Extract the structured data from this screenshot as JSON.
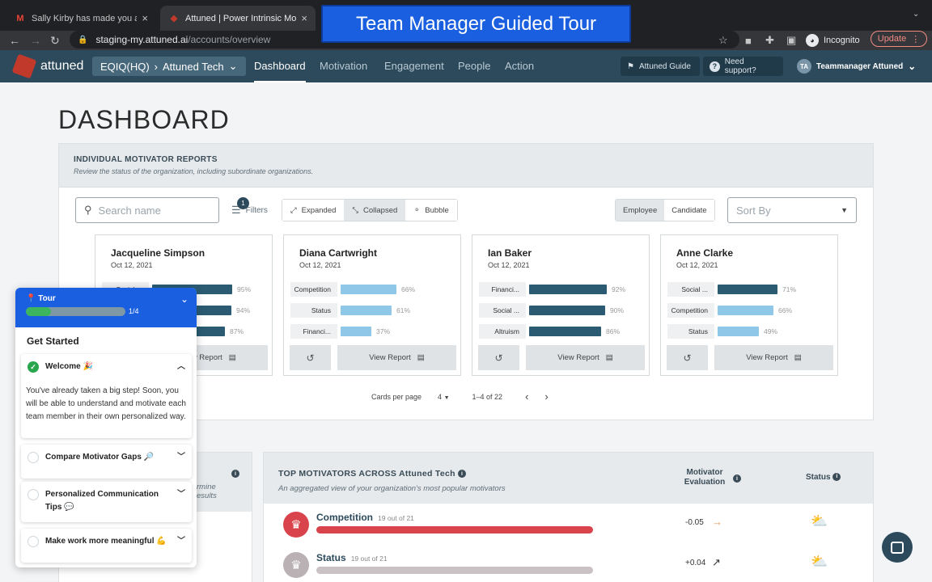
{
  "browser": {
    "tabs": [
      {
        "title": "Sally Kirby has made you a Tea",
        "favicon": "gmail-icon"
      },
      {
        "title": "Attuned | Power Intrinsic Motiv",
        "favicon": "attuned-favicon"
      }
    ],
    "url_host": "staging-my.attuned.ai",
    "url_path": "/accounts/overview",
    "profile": "Incognito",
    "update_label": "Update"
  },
  "tour_banner": "Team Manager Guided Tour",
  "app": {
    "logo_text": "attuned",
    "org": {
      "parent": "EQIQ(HQ)",
      "current": "Attuned Tech"
    },
    "nav": [
      "Dashboard",
      "Motivation",
      "Engagement",
      "People",
      "Action"
    ],
    "guide_label": "Attuned Guide",
    "support_label": "Need support?",
    "user": {
      "initials": "TA",
      "name": "Teammanager Attuned"
    }
  },
  "page": {
    "title": "DASHBOARD"
  },
  "reports": {
    "title": "INDIVIDUAL MOTIVATOR REPORTS",
    "subtitle": "Review the status of the organization, including subordinate organizations.",
    "search_placeholder": "Search name",
    "filters_label": "Filters",
    "filters_count": "1",
    "views": [
      "Expanded",
      "Collapsed",
      "Bubble"
    ],
    "selected_view": "Collapsed",
    "toggles": [
      "Employee",
      "Candidate"
    ],
    "sort_placeholder": "Sort By",
    "view_report_label": "View Report",
    "cards": [
      {
        "name": "Jacqueline Simpson",
        "date": "Oct 12, 2021",
        "motivators": [
          {
            "label": "Social ...",
            "pct": 95,
            "pct_text": "95%"
          },
          {
            "label": "",
            "pct": 94,
            "pct_text": "94%"
          },
          {
            "label": "",
            "pct": 87,
            "pct_text": "87%"
          }
        ]
      },
      {
        "name": "Diana Cartwright",
        "date": "Oct 12, 2021",
        "motivators": [
          {
            "label": "Competition",
            "pct": 66,
            "pct_text": "66%"
          },
          {
            "label": "Status",
            "pct": 61,
            "pct_text": "61%"
          },
          {
            "label": "Financi...",
            "pct": 37,
            "pct_text": "37%"
          }
        ]
      },
      {
        "name": "Ian Baker",
        "date": "Oct 12, 2021",
        "motivators": [
          {
            "label": "Financi...",
            "pct": 92,
            "pct_text": "92%"
          },
          {
            "label": "Social ...",
            "pct": 90,
            "pct_text": "90%"
          },
          {
            "label": "Altruism",
            "pct": 86,
            "pct_text": "86%"
          }
        ]
      },
      {
        "name": "Anne Clarke",
        "date": "Oct 12, 2021",
        "motivators": [
          {
            "label": "Social ...",
            "pct": 71,
            "pct_text": "71%"
          },
          {
            "label": "Competition",
            "pct": 66,
            "pct_text": "66%"
          },
          {
            "label": "Status",
            "pct": 49,
            "pct_text": "49%"
          }
        ]
      }
    ],
    "pager": {
      "label": "Cards per page",
      "value": "4",
      "range": "1–4 of 22"
    }
  },
  "top_motivators": {
    "title": "TOP MOTIVATORS ACROSS Attuned Tech",
    "subtitle": "An aggregated view of your organization's most popular motivators",
    "col_eval": "Motivator Evaluation",
    "col_status": "Status",
    "rows": [
      {
        "name": "Competition",
        "count": "19 out of 21",
        "eval": "-0.05",
        "color": "#d9434b",
        "icon_color": "#d9434b"
      },
      {
        "name": "Status",
        "count": "19 out of 21",
        "eval": "+0.04",
        "color": "#c9c1c3",
        "icon_color": "#b9b1b4"
      }
    ]
  },
  "left_panel": {
    "line1": "rmine",
    "line2": "esults"
  },
  "tour": {
    "label": "Tour",
    "progress_text": "1/4",
    "progress": 0.25,
    "heading": "Get Started",
    "steps": [
      {
        "title": "Welcome 🎉",
        "done": true,
        "expanded": true,
        "body": "You've already taken a big step! Soon, you will be able to understand and motivate each team member in their own personalized way."
      },
      {
        "title": "Compare Motivator Gaps 🔎",
        "done": false,
        "expanded": false
      },
      {
        "title": "Personalized Communication Tips 💬",
        "done": false,
        "expanded": false
      },
      {
        "title": "Make work more meaningful 💪",
        "done": false,
        "expanded": false
      }
    ]
  },
  "colors": {
    "nav_bg": "#2c4a5c",
    "tour_blue": "#1a5fe0",
    "accent_green": "#3cb55e",
    "bar_dark": "#2a5b73",
    "bar_light": "#8fc7e8"
  }
}
